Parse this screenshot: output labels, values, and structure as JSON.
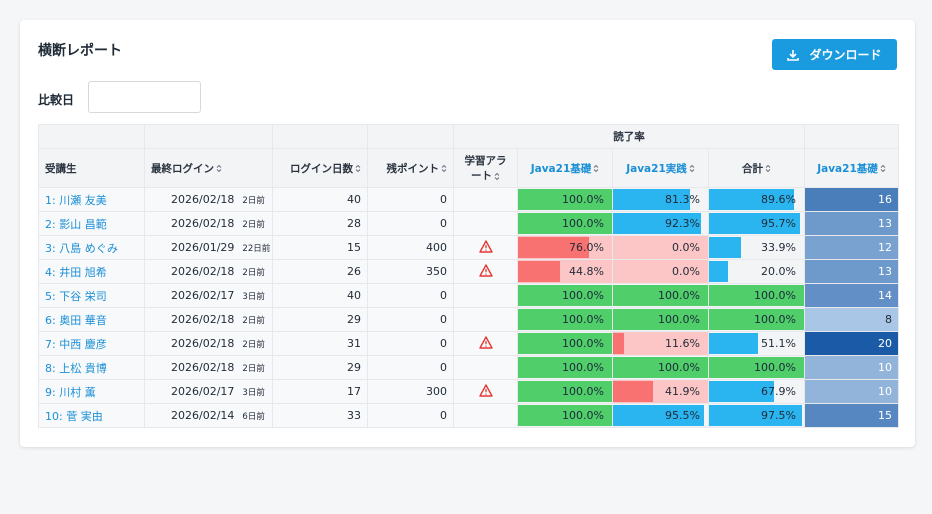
{
  "header": {
    "title": "横断レポート",
    "download": "ダウンロード",
    "compare_label": "比較日"
  },
  "table": {
    "group_header": "読了率",
    "columns": [
      "受講生",
      "最終ログイン",
      "ログイン日数",
      "残ポイント",
      "学習アラート",
      "Java21基礎",
      "Java21実践",
      "合計",
      "Java21基礎"
    ],
    "rows": [
      {
        "name": "1: 川瀬 友美",
        "last_login": "2026/02/18",
        "ago": "2日前",
        "login_days": 40,
        "points": 0,
        "alert": false,
        "rates": [
          {
            "value": 100.0,
            "label": "100.0%",
            "color": "#4fce6a",
            "bg": "#f3f4f6"
          },
          {
            "value": 81.3,
            "label": "81.3%",
            "color": "#2bb5f0",
            "bg": "#f3f4f6"
          },
          {
            "value": 89.6,
            "label": "89.6%",
            "color": "#2bb5f0",
            "bg": "#f3f4f6"
          }
        ],
        "score": 16
      },
      {
        "name": "2: 影山 昌範",
        "last_login": "2026/02/18",
        "ago": "2日前",
        "login_days": 28,
        "points": 0,
        "alert": false,
        "rates": [
          {
            "value": 100.0,
            "label": "100.0%",
            "color": "#4fce6a",
            "bg": "#f3f4f6"
          },
          {
            "value": 92.3,
            "label": "92.3%",
            "color": "#2bb5f0",
            "bg": "#f3f4f6"
          },
          {
            "value": 95.7,
            "label": "95.7%",
            "color": "#2bb5f0",
            "bg": "#f3f4f6"
          }
        ],
        "score": 13
      },
      {
        "name": "3: 八島 めぐみ",
        "last_login": "2026/01/29",
        "ago": "22日前",
        "login_days": 15,
        "points": 400,
        "alert": true,
        "rates": [
          {
            "value": 76.0,
            "label": "76.0%",
            "color": "#f87272",
            "bg": "#fcc6c6"
          },
          {
            "value": 0.0,
            "label": "0.0%",
            "color": "#f87272",
            "bg": "#fcc6c6"
          },
          {
            "value": 33.9,
            "label": "33.9%",
            "color": "#2bb5f0",
            "bg": "#f3f4f6"
          }
        ],
        "score": 12
      },
      {
        "name": "4: 井田 旭希",
        "last_login": "2026/02/18",
        "ago": "2日前",
        "login_days": 26,
        "points": 350,
        "alert": true,
        "rates": [
          {
            "value": 44.8,
            "label": "44.8%",
            "color": "#f87272",
            "bg": "#fcc6c6"
          },
          {
            "value": 0.0,
            "label": "0.0%",
            "color": "#f87272",
            "bg": "#fcc6c6"
          },
          {
            "value": 20.0,
            "label": "20.0%",
            "color": "#2bb5f0",
            "bg": "#f3f4f6"
          }
        ],
        "score": 13
      },
      {
        "name": "5: 下谷 栄司",
        "last_login": "2026/02/17",
        "ago": "3日前",
        "login_days": 40,
        "points": 0,
        "alert": false,
        "rates": [
          {
            "value": 100.0,
            "label": "100.0%",
            "color": "#4fce6a",
            "bg": "#f3f4f6"
          },
          {
            "value": 100.0,
            "label": "100.0%",
            "color": "#4fce6a",
            "bg": "#f3f4f6"
          },
          {
            "value": 100.0,
            "label": "100.0%",
            "color": "#4fce6a",
            "bg": "#f3f4f6"
          }
        ],
        "score": 14
      },
      {
        "name": "6: 奥田 華音",
        "last_login": "2026/02/18",
        "ago": "2日前",
        "login_days": 29,
        "points": 0,
        "alert": false,
        "rates": [
          {
            "value": 100.0,
            "label": "100.0%",
            "color": "#4fce6a",
            "bg": "#f3f4f6"
          },
          {
            "value": 100.0,
            "label": "100.0%",
            "color": "#4fce6a",
            "bg": "#f3f4f6"
          },
          {
            "value": 100.0,
            "label": "100.0%",
            "color": "#4fce6a",
            "bg": "#f3f4f6"
          }
        ],
        "score": 8
      },
      {
        "name": "7: 中西 慶彦",
        "last_login": "2026/02/18",
        "ago": "2日前",
        "login_days": 31,
        "points": 0,
        "alert": true,
        "rates": [
          {
            "value": 100.0,
            "label": "100.0%",
            "color": "#4fce6a",
            "bg": "#f3f4f6"
          },
          {
            "value": 11.6,
            "label": "11.6%",
            "color": "#f87272",
            "bg": "#fcc6c6"
          },
          {
            "value": 51.1,
            "label": "51.1%",
            "color": "#2bb5f0",
            "bg": "#f3f4f6"
          }
        ],
        "score": 20
      },
      {
        "name": "8: 上松 貴博",
        "last_login": "2026/02/18",
        "ago": "2日前",
        "login_days": 29,
        "points": 0,
        "alert": false,
        "rates": [
          {
            "value": 100.0,
            "label": "100.0%",
            "color": "#4fce6a",
            "bg": "#f3f4f6"
          },
          {
            "value": 100.0,
            "label": "100.0%",
            "color": "#4fce6a",
            "bg": "#f3f4f6"
          },
          {
            "value": 100.0,
            "label": "100.0%",
            "color": "#4fce6a",
            "bg": "#f3f4f6"
          }
        ],
        "score": 10
      },
      {
        "name": "9: 川村 薫",
        "last_login": "2026/02/17",
        "ago": "3日前",
        "login_days": 17,
        "points": 300,
        "alert": true,
        "rates": [
          {
            "value": 100.0,
            "label": "100.0%",
            "color": "#4fce6a",
            "bg": "#f3f4f6"
          },
          {
            "value": 41.9,
            "label": "41.9%",
            "color": "#f87272",
            "bg": "#fcc6c6"
          },
          {
            "value": 67.9,
            "label": "67.9%",
            "color": "#2bb5f0",
            "bg": "#f3f4f6"
          }
        ],
        "score": 10
      },
      {
        "name": "10: 菅 実由",
        "last_login": "2026/02/14",
        "ago": "6日前",
        "login_days": 33,
        "points": 0,
        "alert": false,
        "rates": [
          {
            "value": 100.0,
            "label": "100.0%",
            "color": "#4fce6a",
            "bg": "#f3f4f6"
          },
          {
            "value": 95.5,
            "label": "95.5%",
            "color": "#2bb5f0",
            "bg": "#f3f4f6"
          },
          {
            "value": 97.5,
            "label": "97.5%",
            "color": "#2bb5f0",
            "bg": "#f3f4f6"
          }
        ],
        "score": 15
      }
    ]
  }
}
